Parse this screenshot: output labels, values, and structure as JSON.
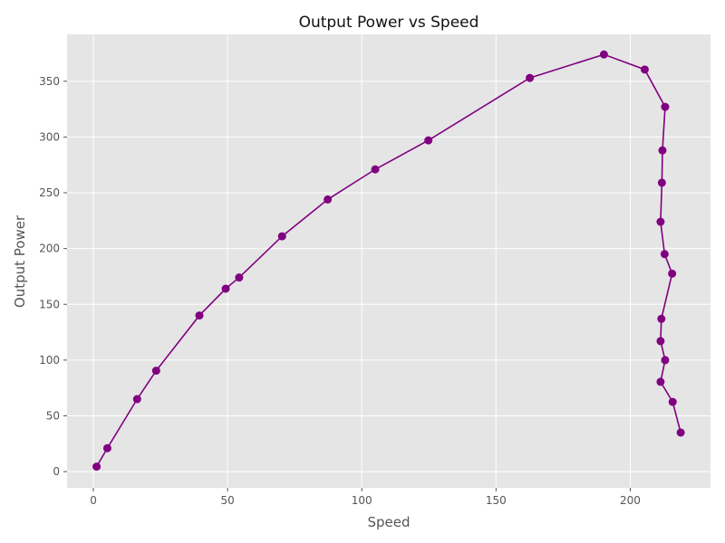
{
  "chart_data": {
    "type": "line",
    "title": "Output Power vs Speed",
    "xlabel": "Speed",
    "ylabel": "Output Power",
    "xlim": [
      -9.8,
      229.9
    ],
    "ylim": [
      -14.5,
      392.0
    ],
    "xticks": [
      0,
      50,
      100,
      150,
      200
    ],
    "yticks": [
      0,
      50,
      100,
      150,
      200,
      250,
      300,
      350
    ],
    "grid": true,
    "colors": {
      "line": "#800080",
      "marker": "#800080",
      "plot_bg": "#e5e5e5",
      "grid": "#ffffff"
    },
    "series": [
      {
        "points": [
          {
            "x": 1.2,
            "y": 4.5
          },
          {
            "x": 5.2,
            "y": 21.0
          },
          {
            "x": 16.3,
            "y": 65.0
          },
          {
            "x": 23.4,
            "y": 90.5
          },
          {
            "x": 39.5,
            "y": 140.0
          },
          {
            "x": 49.3,
            "y": 164.0
          },
          {
            "x": 54.3,
            "y": 174.0
          },
          {
            "x": 70.3,
            "y": 211.0
          },
          {
            "x": 87.3,
            "y": 244.0
          },
          {
            "x": 105.0,
            "y": 271.0
          },
          {
            "x": 124.8,
            "y": 297.0
          },
          {
            "x": 162.6,
            "y": 353.0
          },
          {
            "x": 190.2,
            "y": 374.0
          },
          {
            "x": 205.4,
            "y": 360.5
          },
          {
            "x": 213.0,
            "y": 327.0
          },
          {
            "x": 212.0,
            "y": 288.0
          },
          {
            "x": 211.8,
            "y": 259.0
          },
          {
            "x": 211.3,
            "y": 224.0
          },
          {
            "x": 212.8,
            "y": 195.0
          },
          {
            "x": 215.6,
            "y": 177.5
          },
          {
            "x": 211.6,
            "y": 137.0
          },
          {
            "x": 211.3,
            "y": 117.0
          },
          {
            "x": 213.0,
            "y": 100.0
          },
          {
            "x": 211.3,
            "y": 80.5
          },
          {
            "x": 215.8,
            "y": 62.5
          },
          {
            "x": 218.8,
            "y": 35.0
          }
        ]
      }
    ]
  }
}
